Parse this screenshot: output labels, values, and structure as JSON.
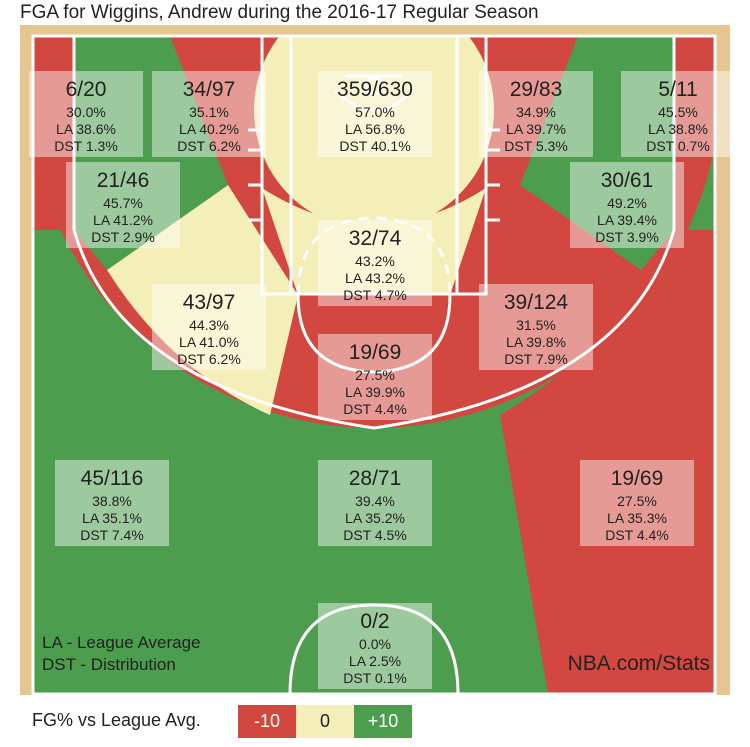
{
  "title": "FGA for Wiggins, Andrew during the 2016-17 Regular Season",
  "colors": {
    "floor": "#e6c690",
    "red": "#d2473f",
    "yellow": "#f4efb8",
    "green": "#4d9d4f",
    "line": "#ffffff",
    "box_fill": "#ffffff"
  },
  "notes": {
    "la": "LA - League Average",
    "dst": "DST - Distribution",
    "source": "NBA.com/Stats"
  },
  "legend": {
    "label": "FG% vs League Avg.",
    "items": [
      {
        "label": "-10",
        "color": "#d2473f"
      },
      {
        "label": "0",
        "color": "#f4efb8"
      },
      {
        "label": "+10",
        "color": "#4d9d4f"
      }
    ]
  },
  "chart_data": {
    "type": "shot-chart",
    "title": "FGA for Wiggins, Andrew during the 2016-17 Regular Season",
    "color_scale": "FG% vs League Avg.",
    "zones": [
      {
        "id": "left-corner-3",
        "made_att": "6/20",
        "fg": "30.0%",
        "la": "LA 38.6%",
        "dst": "DST 1.3%",
        "rating": "red"
      },
      {
        "id": "left-baseline-mid",
        "made_att": "34/97",
        "fg": "35.1%",
        "la": "LA 40.2%",
        "dst": "DST 6.2%",
        "rating": "red"
      },
      {
        "id": "restricted-area",
        "made_att": "359/630",
        "fg": "57.0%",
        "la": "LA 56.8%",
        "dst": "DST 40.1%",
        "rating": "yellow"
      },
      {
        "id": "right-baseline-mid",
        "made_att": "29/83",
        "fg": "34.9%",
        "la": "LA 39.7%",
        "dst": "DST 5.3%",
        "rating": "red"
      },
      {
        "id": "right-corner-3",
        "made_att": "5/11",
        "fg": "45.5%",
        "la": "LA 38.8%",
        "dst": "DST 0.7%",
        "rating": "green"
      },
      {
        "id": "left-short-mid",
        "made_att": "21/46",
        "fg": "45.7%",
        "la": "LA 41.2%",
        "dst": "DST 2.9%",
        "rating": "green"
      },
      {
        "id": "paint-non-ra",
        "made_att": "32/74",
        "fg": "43.2%",
        "la": "LA 43.2%",
        "dst": "DST 4.7%",
        "rating": "yellow"
      },
      {
        "id": "right-short-mid",
        "made_att": "30/61",
        "fg": "49.2%",
        "la": "LA 39.4%",
        "dst": "DST 3.9%",
        "rating": "green"
      },
      {
        "id": "left-wing-mid",
        "made_att": "43/97",
        "fg": "44.3%",
        "la": "LA 41.0%",
        "dst": "DST 6.2%",
        "rating": "yellow"
      },
      {
        "id": "center-mid",
        "made_att": "19/69",
        "fg": "27.5%",
        "la": "LA 39.9%",
        "dst": "DST 4.4%",
        "rating": "red"
      },
      {
        "id": "right-wing-mid",
        "made_att": "39/124",
        "fg": "31.5%",
        "la": "LA 39.8%",
        "dst": "DST 7.9%",
        "rating": "red"
      },
      {
        "id": "left-wing-3",
        "made_att": "45/116",
        "fg": "38.8%",
        "la": "LA 35.1%",
        "dst": "DST 7.4%",
        "rating": "green"
      },
      {
        "id": "center-3",
        "made_att": "28/71",
        "fg": "39.4%",
        "la": "LA 35.2%",
        "dst": "DST 4.5%",
        "rating": "green"
      },
      {
        "id": "right-wing-3",
        "made_att": "19/69",
        "fg": "27.5%",
        "la": "LA 35.3%",
        "dst": "DST 4.4%",
        "rating": "red"
      },
      {
        "id": "backcourt",
        "made_att": "0/2",
        "fg": "0.0%",
        "la": "LA 2.5%",
        "dst": "DST 0.1%",
        "rating": "green"
      }
    ]
  }
}
